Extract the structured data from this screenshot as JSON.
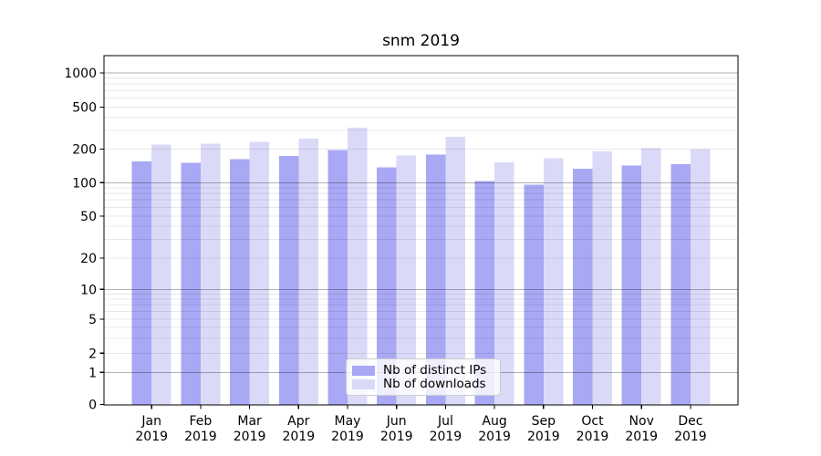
{
  "title": "snm 2019",
  "chart_data": {
    "type": "bar",
    "title": "snm 2019",
    "xlabel": "",
    "ylabel": "",
    "yscale": "symlog",
    "yticks": [
      0,
      1,
      2,
      5,
      10,
      20,
      50,
      100,
      200,
      500,
      1000
    ],
    "ytick_labels": [
      "0",
      "1",
      "2",
      "5",
      "10",
      "20",
      "50",
      "100",
      "200",
      "500",
      "1000"
    ],
    "ylim": [
      0,
      1450
    ],
    "grid": "horizontal log gridlines, majors at powers of 10 darker, minors lighter",
    "legend_position": "lower center inside axes",
    "categories": [
      "Jan 2019",
      "Feb 2019",
      "Mar 2019",
      "Apr 2019",
      "May 2019",
      "Jun 2019",
      "Jul 2019",
      "Aug 2019",
      "Sep 2019",
      "Oct 2019",
      "Nov 2019",
      "Dec 2019"
    ],
    "x_tick_month": [
      "Jan",
      "Feb",
      "Mar",
      "Apr",
      "May",
      "Jun",
      "Jul",
      "Aug",
      "Sep",
      "Oct",
      "Nov",
      "Dec"
    ],
    "x_tick_year": "2019",
    "series": [
      {
        "name": "Nb of distinct IPs",
        "color": "#a8a8f5",
        "values": [
          155,
          151,
          163,
          173,
          196,
          137,
          179,
          103,
          96,
          133,
          143,
          146
        ]
      },
      {
        "name": "Nb of downloads",
        "color": "#dadaf8",
        "values": [
          220,
          225,
          235,
          252,
          320,
          175,
          262,
          152,
          165,
          190,
          205,
          200
        ]
      }
    ]
  },
  "legend": {
    "items": [
      {
        "label": "Nb of distinct IPs",
        "color": "#a8a8f5"
      },
      {
        "label": "Nb of downloads",
        "color": "#dadaf8"
      }
    ]
  },
  "colors": {
    "spine": "#000000",
    "grid_major": "rgba(0,0,0,0.30)",
    "grid_minor": "rgba(0,0,0,0.09)",
    "text": "#000000"
  }
}
